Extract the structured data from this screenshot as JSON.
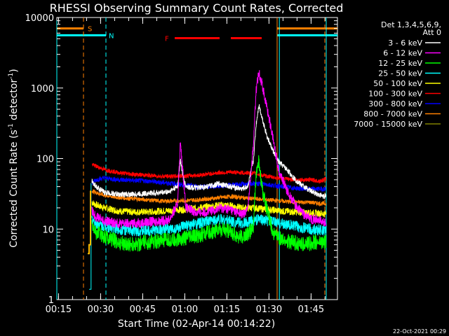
{
  "chart_data": {
    "type": "line",
    "title": "RHESSI Observing Summary Count Rates, Corrected",
    "xlabel": "Start Time (02-Apr-14 00:14:22)",
    "ylabel_main": "Corrected Count Rate (s",
    "ylabel_sup": "-1",
    "ylabel_tail": " detector",
    "ylabel_end": ")",
    "y_scale": "log",
    "ylim": [
      1,
      10000
    ],
    "xlim_minutes": [
      0,
      100
    ],
    "x_tick_labels": [
      "00:15",
      "00:30",
      "00:45",
      "01:00",
      "01:15",
      "01:30",
      "01:45"
    ],
    "x_tick_minutes": [
      0.6,
      15.6,
      30.6,
      45.6,
      60.6,
      75.6,
      90.6
    ],
    "y_tick_labels": [
      "1",
      "10",
      "100",
      "1000",
      "10000"
    ],
    "y_tick_values": [
      1,
      10,
      100,
      1000,
      10000
    ],
    "legend_header": [
      "Det 1,3,4,5,6,9,",
      "Att 0"
    ],
    "legend_position": "right",
    "series": [
      {
        "name": "3 - 6 keV",
        "color": "#ffffff",
        "points": [
          [
            12.5,
            48
          ],
          [
            14,
            40
          ],
          [
            17,
            33
          ],
          [
            22,
            31
          ],
          [
            27,
            31
          ],
          [
            32,
            32
          ],
          [
            37,
            33
          ],
          [
            40,
            34
          ],
          [
            43,
            40
          ],
          [
            44,
            95
          ],
          [
            45,
            55
          ],
          [
            46,
            40
          ],
          [
            50,
            38
          ],
          [
            55,
            41
          ],
          [
            58,
            44
          ],
          [
            62,
            40
          ],
          [
            66,
            37
          ],
          [
            68,
            40
          ],
          [
            70,
            90
          ],
          [
            71,
            300
          ],
          [
            72,
            580
          ],
          [
            73,
            400
          ],
          [
            75,
            200
          ],
          [
            77,
            130
          ],
          [
            79,
            90
          ],
          [
            82,
            70
          ],
          [
            85,
            50
          ],
          [
            88,
            40
          ],
          [
            91,
            34
          ],
          [
            94,
            30
          ],
          [
            96,
            29
          ]
        ]
      },
      {
        "name": "6 - 12 keV",
        "color": "#ff00ff",
        "points": [
          [
            12.5,
            18
          ],
          [
            14,
            15
          ],
          [
            17,
            13
          ],
          [
            22,
            12
          ],
          [
            27,
            12
          ],
          [
            32,
            12.5
          ],
          [
            37,
            13
          ],
          [
            40,
            13.5
          ],
          [
            43,
            22
          ],
          [
            44,
            170
          ],
          [
            45,
            60
          ],
          [
            46,
            20
          ],
          [
            50,
            17
          ],
          [
            55,
            18
          ],
          [
            58,
            20
          ],
          [
            62,
            19
          ],
          [
            66,
            16
          ],
          [
            68,
            19
          ],
          [
            70,
            150
          ],
          [
            71,
            900
          ],
          [
            72,
            1700
          ],
          [
            73,
            1200
          ],
          [
            75,
            500
          ],
          [
            77,
            200
          ],
          [
            79,
            70
          ],
          [
            82,
            35
          ],
          [
            85,
            22
          ],
          [
            88,
            16
          ],
          [
            91,
            14
          ],
          [
            94,
            13
          ],
          [
            96,
            12
          ]
        ]
      },
      {
        "name": "12 - 25 keV",
        "color": "#00ff00",
        "points": [
          [
            12.5,
            11
          ],
          [
            14,
            9
          ],
          [
            17,
            8
          ],
          [
            22,
            6.5
          ],
          [
            27,
            6
          ],
          [
            32,
            6.5
          ],
          [
            37,
            6.8
          ],
          [
            42,
            7
          ],
          [
            46,
            7.5
          ],
          [
            50,
            8
          ],
          [
            55,
            9
          ],
          [
            58,
            10
          ],
          [
            62,
            9
          ],
          [
            66,
            7.5
          ],
          [
            70,
            10
          ],
          [
            71,
            60
          ],
          [
            72,
            90
          ],
          [
            73,
            40
          ],
          [
            75,
            18
          ],
          [
            77,
            9
          ],
          [
            80,
            7
          ],
          [
            84,
            6.5
          ],
          [
            88,
            6
          ],
          [
            92,
            6.5
          ],
          [
            96,
            6.5
          ]
        ]
      },
      {
        "name": "25 - 50 keV",
        "color": "#00ffff",
        "points": [
          [
            12.5,
            14
          ],
          [
            14,
            12
          ],
          [
            17,
            11
          ],
          [
            22,
            10
          ],
          [
            27,
            9.5
          ],
          [
            32,
            9.5
          ],
          [
            37,
            9.8
          ],
          [
            42,
            10
          ],
          [
            46,
            11
          ],
          [
            50,
            12
          ],
          [
            55,
            13
          ],
          [
            58,
            14
          ],
          [
            62,
            13
          ],
          [
            66,
            12
          ],
          [
            70,
            13
          ],
          [
            72,
            14
          ],
          [
            75,
            13
          ],
          [
            80,
            12
          ],
          [
            85,
            11
          ],
          [
            90,
            10
          ],
          [
            96,
            9.5
          ]
        ]
      },
      {
        "name": "50 - 100 keV",
        "color": "#ffff00",
        "points": [
          [
            12.5,
            24
          ],
          [
            14,
            22
          ],
          [
            17,
            20
          ],
          [
            22,
            18
          ],
          [
            27,
            17.5
          ],
          [
            32,
            17.5
          ],
          [
            37,
            18
          ],
          [
            42,
            18.5
          ],
          [
            46,
            19
          ],
          [
            50,
            20
          ],
          [
            55,
            21
          ],
          [
            58,
            22
          ],
          [
            62,
            21.5
          ],
          [
            66,
            20
          ],
          [
            70,
            20
          ],
          [
            75,
            19
          ],
          [
            80,
            18
          ],
          [
            85,
            17.5
          ],
          [
            90,
            17
          ],
          [
            96,
            16.5
          ]
        ]
      },
      {
        "name": "100 - 300 keV",
        "color": "#ff0000",
        "points": [
          [
            12.5,
            82
          ],
          [
            14,
            78
          ],
          [
            17,
            70
          ],
          [
            22,
            63
          ],
          [
            27,
            60
          ],
          [
            32,
            58
          ],
          [
            37,
            56
          ],
          [
            42,
            56
          ],
          [
            46,
            57
          ],
          [
            50,
            58
          ],
          [
            55,
            61
          ],
          [
            58,
            63
          ],
          [
            62,
            64
          ],
          [
            66,
            63
          ],
          [
            70,
            62
          ],
          [
            75,
            56
          ],
          [
            80,
            52
          ],
          [
            85,
            50
          ],
          [
            90,
            50
          ],
          [
            94,
            48
          ],
          [
            96,
            52
          ]
        ]
      },
      {
        "name": "300 - 800 keV",
        "color": "#0000ff",
        "points": [
          [
            12.5,
            45
          ],
          [
            14,
            50
          ],
          [
            17,
            53
          ],
          [
            22,
            50
          ],
          [
            27,
            49
          ],
          [
            32,
            48
          ],
          [
            37,
            46
          ],
          [
            42,
            44
          ],
          [
            46,
            42
          ],
          [
            50,
            40
          ],
          [
            55,
            40
          ],
          [
            58,
            41
          ],
          [
            62,
            42
          ],
          [
            66,
            43
          ],
          [
            70,
            44
          ],
          [
            75,
            43
          ],
          [
            80,
            40
          ],
          [
            85,
            38
          ],
          [
            90,
            37
          ],
          [
            94,
            37
          ],
          [
            96,
            37
          ]
        ]
      },
      {
        "name": "800 - 7000 keV",
        "color": "#ff8000",
        "points": [
          [
            12.5,
            35
          ],
          [
            14,
            33
          ],
          [
            17,
            30
          ],
          [
            22,
            28
          ],
          [
            27,
            27
          ],
          [
            32,
            26
          ],
          [
            37,
            25
          ],
          [
            42,
            25
          ],
          [
            46,
            25.5
          ],
          [
            50,
            26
          ],
          [
            55,
            27
          ],
          [
            58,
            28
          ],
          [
            62,
            29
          ],
          [
            66,
            28
          ],
          [
            70,
            27
          ],
          [
            75,
            26
          ],
          [
            80,
            25
          ],
          [
            85,
            24
          ],
          [
            90,
            24
          ],
          [
            94,
            23
          ],
          [
            96,
            23
          ]
        ]
      },
      {
        "name": "7000 - 15000 keV",
        "color": "#808000",
        "points": []
      }
    ],
    "annotations": {
      "s_flag": {
        "label": "S",
        "color": "#ff8000"
      },
      "n_flag": {
        "label": "N",
        "color": "#00ffff"
      },
      "f_flag": {
        "label": "F",
        "color": "#ff0000"
      }
    }
  },
  "footer": {
    "timestamp": "22-Oct-2021 00:29"
  }
}
